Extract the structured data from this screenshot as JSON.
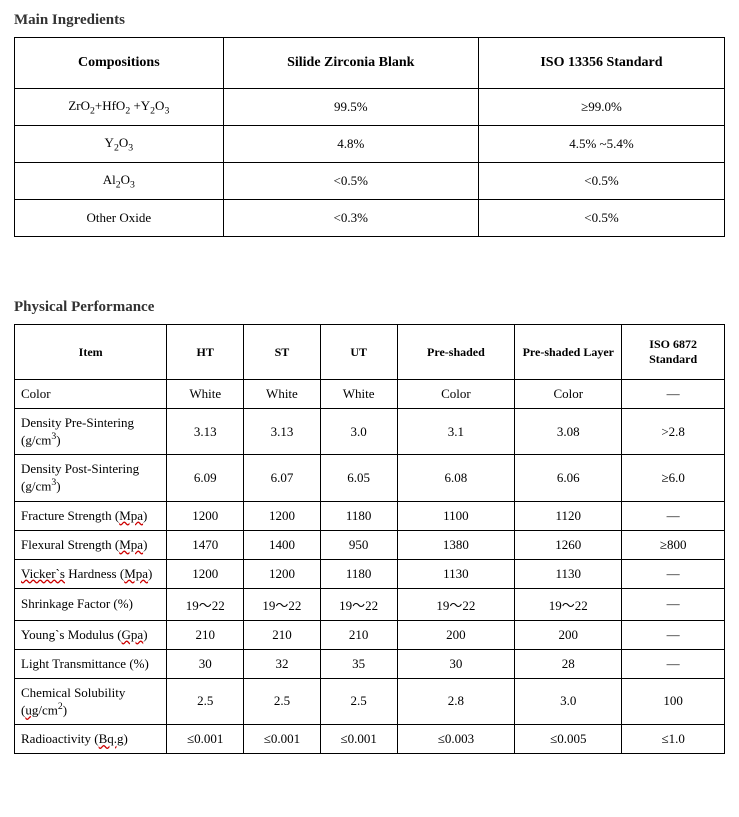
{
  "headings": {
    "main_ingredients": "Main Ingredients",
    "physical_performance": "Physical Performance"
  },
  "ingredients_table": {
    "style": {
      "border_color": "#000000",
      "background_color": "#ffffff",
      "header_font_size": 14,
      "body_font_size": 13
    },
    "headers": {
      "compositions": "Compositions",
      "col1": "Silide Zirconia Blank",
      "col2": "ISO 13356 Standard"
    },
    "rows": [
      {
        "comp_html": "ZrO<sub>2</sub>+HfO<sub>2</sub> +Y<sub>2</sub>O<sub>3</sub>",
        "v1": "99.5%",
        "v2": "≥99.0%"
      },
      {
        "comp_html": "Y<sub>2</sub>O<sub>3</sub>",
        "v1": "4.8%",
        "v2": "4.5% ~5.4%"
      },
      {
        "comp_html": "Al<sub>2</sub>O<sub>3</sub>",
        "v1": "<0.5%",
        "v2": "<0.5%"
      },
      {
        "comp_html": "Other Oxide",
        "v1": "<0.3%",
        "v2": "<0.5%"
      }
    ]
  },
  "performance_table": {
    "style": {
      "border_color": "#000000",
      "background_color": "#ffffff",
      "header_font_size": 12,
      "body_font_size": 13
    },
    "headers": {
      "item": "Item",
      "ht": "HT",
      "st": "ST",
      "ut": "UT",
      "preshaded": "Pre-shaded",
      "preshaded_layer": "Pre-shaded Layer",
      "iso": "ISO 6872 Standard"
    },
    "rows": [
      {
        "item_html": "Color",
        "ht": "White",
        "st": "White",
        "ut": "White",
        "ps": "Color",
        "psl": "Color",
        "iso": "—"
      },
      {
        "item_html": "Density Pre-Sintering (g/cm<sup>3</sup>)",
        "ht": "3.13",
        "st": "3.13",
        "ut": "3.0",
        "ps": "3.1",
        "psl": "3.08",
        "iso": ">2.8"
      },
      {
        "item_html": "Density Post-Sintering (g/cm<sup>3</sup>)",
        "ht": "6.09",
        "st": "6.07",
        "ut": "6.05",
        "ps": "6.08",
        "psl": "6.06",
        "iso": "≥6.0"
      },
      {
        "item_html": "Fracture Strength (<span class=\"underline-red\">Mpa</span>)",
        "ht": "1200",
        "st": "1200",
        "ut": "1180",
        "ps": "1100",
        "psl": "1120",
        "iso": "—"
      },
      {
        "item_html": "Flexural Strength (<span class=\"underline-red\">Mpa</span>)",
        "ht": "1470",
        "st": "1400",
        "ut": "950",
        "ps": "1380",
        "psl": "1260",
        "iso": "≥800"
      },
      {
        "item_html": "<span class=\"underline-red\">Vicker`s</span> Hardness (<span class=\"underline-red\">Mpa</span>)",
        "ht": "1200",
        "st": "1200",
        "ut": "1180",
        "ps": "1130",
        "psl": "1130",
        "iso": "—"
      },
      {
        "item_html": "Shrinkage Factor (%)",
        "ht": "19～22",
        "st": "19～22",
        "ut": "19～22",
        "ps": "19～22",
        "psl": "19～22",
        "iso": "—"
      },
      {
        "item_html": "Young`s Modulus (<span class=\"underline-red\">Gpa</span>)",
        "ht": "210",
        "st": "210",
        "ut": "210",
        "ps": "200",
        "psl": "200",
        "iso": "—"
      },
      {
        "item_html": "Light Transmittance (%)",
        "ht": "30",
        "st": "32",
        "ut": "35",
        "ps": "30",
        "psl": "28",
        "iso": "—"
      },
      {
        "item_html": "Chemical Solubility (<span class=\"underline-red\">ug</span>/cm<sup>2</sup>)",
        "ht": "2.5",
        "st": "2.5",
        "ut": "2.5",
        "ps": "2.8",
        "psl": "3.0",
        "iso": "100"
      },
      {
        "item_html": "Radioactivity (<span class=\"underline-red\">Bq.g</span>)",
        "ht": "≤0.001",
        "st": "≤0.001",
        "ut": "≤0.001",
        "ps": "≤0.003",
        "psl": "≤0.005",
        "iso": "≤1.0"
      }
    ]
  }
}
